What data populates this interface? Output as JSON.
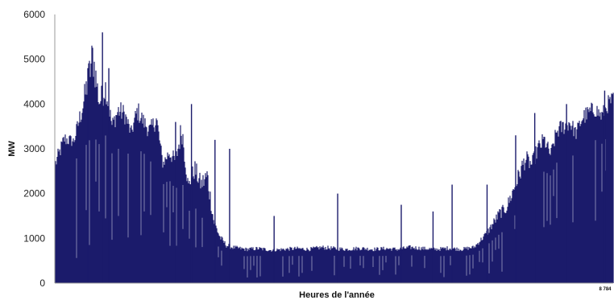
{
  "chart_data": {
    "type": "area",
    "title": "",
    "xlabel": "Heures de l'année",
    "ylabel": "MW",
    "xlim": [
      0,
      8784
    ],
    "ylim": [
      0,
      6000
    ],
    "y_ticks": [
      "0",
      "1000",
      "2000",
      "3000",
      "4000",
      "5000",
      "6000"
    ],
    "x_end_label": "8 784",
    "grid": false,
    "legend": "none",
    "colors": {
      "fill": "#1b1b6b",
      "axis": "#9a9a9a"
    },
    "series": [
      {
        "x": [
          0,
          150,
          300,
          450,
          600,
          700,
          800,
          900,
          1000,
          1100,
          1200,
          1300,
          1400,
          1500,
          1600,
          1700,
          1800,
          1900,
          2000,
          2100,
          2200,
          2300,
          2400,
          2500,
          2600,
          2700,
          2800,
          3000,
          3200,
          3400,
          3600,
          3800,
          4000,
          4200,
          4400,
          4600,
          4800,
          5000,
          5200,
          5400,
          5600,
          5800,
          6000,
          6200,
          6400,
          6600,
          6800,
          7000,
          7100,
          7200,
          7300,
          7400,
          7500,
          7600,
          7700,
          7800,
          7900,
          8000,
          8100,
          8200,
          8300,
          8400,
          8500,
          8600,
          8700,
          8784
        ],
        "y": [
          2800,
          3400,
          3300,
          4300,
          5600,
          4300,
          4700,
          3700,
          4100,
          4000,
          3500,
          4100,
          3800,
          3600,
          3900,
          2800,
          3100,
          2900,
          3800,
          2300,
          2800,
          2400,
          2700,
          1500,
          1100,
          900,
          850,
          800,
          820,
          780,
          800,
          820,
          800,
          850,
          820,
          800,
          830,
          800,
          820,
          800,
          850,
          820,
          800,
          830,
          800,
          850,
          1200,
          1700,
          1800,
          2200,
          2600,
          3000,
          2800,
          3200,
          3400,
          3000,
          3600,
          3700,
          3800,
          3500,
          3900,
          4000,
          4100,
          3900,
          4200,
          4300
        ],
        "min": [
          2000,
          2600,
          2700,
          3000,
          3300,
          3100,
          3300,
          2900,
          3000,
          3000,
          2800,
          3000,
          2900,
          2700,
          2900,
          2200,
          2300,
          2100,
          2300,
          1600,
          1700,
          1500,
          1300,
          1000,
          750,
          650,
          620,
          600,
          610,
          590,
          600,
          610,
          600,
          620,
          610,
          600,
          610,
          600,
          610,
          600,
          620,
          610,
          600,
          610,
          600,
          640,
          850,
          1100,
          1200,
          1400,
          1700,
          2000,
          2100,
          2300,
          2500,
          2400,
          2700,
          2800,
          2900,
          2800,
          3000,
          3100,
          3200,
          3100,
          3300,
          3400
        ]
      }
    ],
    "spikes": [
      {
        "x": 520,
        "y": 4800
      },
      {
        "x": 750,
        "y": 5600
      },
      {
        "x": 850,
        "y": 4800
      },
      {
        "x": 1900,
        "y": 3600
      },
      {
        "x": 2150,
        "y": 4000
      },
      {
        "x": 2520,
        "y": 3200
      },
      {
        "x": 2750,
        "y": 3000
      },
      {
        "x": 3450,
        "y": 1500
      },
      {
        "x": 4450,
        "y": 2000
      },
      {
        "x": 5450,
        "y": 1750
      },
      {
        "x": 5950,
        "y": 1600
      },
      {
        "x": 6250,
        "y": 2200
      },
      {
        "x": 6800,
        "y": 2200
      },
      {
        "x": 7250,
        "y": 3300
      },
      {
        "x": 7550,
        "y": 3800
      },
      {
        "x": 8050,
        "y": 4000
      },
      {
        "x": 8650,
        "y": 4300
      }
    ]
  }
}
